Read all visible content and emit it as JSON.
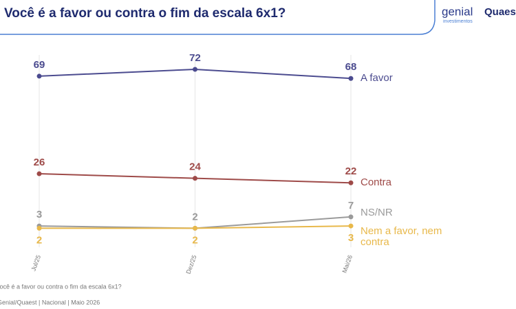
{
  "chart_data": {
    "type": "line",
    "title": "Você é a favor ou contra o fim da escala 6x1?",
    "brand": "genial",
    "brand_sub": "investimentos",
    "partner": "Quaest",
    "question": "Você é a favor ou contra o fim da escala 6x1?",
    "source": "Genial/Quaest | Nacional | Maio 2026",
    "categories": [
      "Jul/25",
      "Dez/25",
      "Mai/26"
    ],
    "series": [
      {
        "name": "A favor",
        "color": "#4b4b8f",
        "values": [
          69,
          72,
          68
        ]
      },
      {
        "name": "Contra",
        "color": "#9e4a48",
        "values": [
          26,
          24,
          22
        ]
      },
      {
        "name": "NS/NR",
        "color": "#9a9a9a",
        "values": [
          3,
          2,
          7
        ]
      },
      {
        "name": "Nem a favor, nem contra",
        "color": "#e8b84a",
        "values": [
          2,
          2,
          3
        ]
      }
    ],
    "ylim": [
      0,
      72
    ],
    "grid": true
  }
}
